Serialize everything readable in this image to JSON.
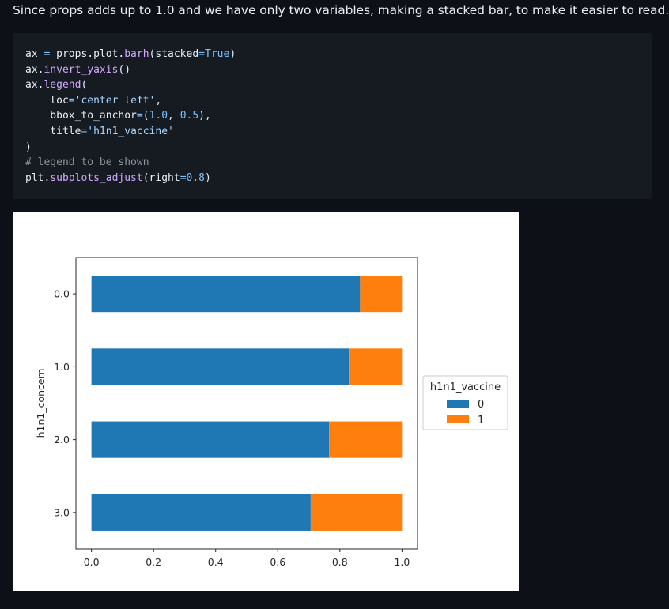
{
  "intro_text": "Since props adds up to 1.0 and we have only two variables, making a stacked bar, to make it easier to read.",
  "code": {
    "lines": [
      [
        {
          "t": "ax ",
          "c": ""
        },
        {
          "t": "=",
          "c": "op"
        },
        {
          "t": " props.plot.",
          "c": ""
        },
        {
          "t": "barh",
          "c": "fn"
        },
        {
          "t": "(stacked",
          "c": ""
        },
        {
          "t": "=",
          "c": "op"
        },
        {
          "t": "True",
          "c": "kw"
        },
        {
          "t": ")",
          "c": ""
        }
      ],
      [
        {
          "t": "ax.",
          "c": ""
        },
        {
          "t": "invert_yaxis",
          "c": "fn"
        },
        {
          "t": "()",
          "c": ""
        }
      ],
      [
        {
          "t": "ax.",
          "c": ""
        },
        {
          "t": "legend",
          "c": "fn"
        },
        {
          "t": "(",
          "c": ""
        }
      ],
      [
        {
          "t": "    loc",
          "c": ""
        },
        {
          "t": "=",
          "c": "op"
        },
        {
          "t": "'center left'",
          "c": "str"
        },
        {
          "t": ",",
          "c": ""
        }
      ],
      [
        {
          "t": "    bbox_to_anchor",
          "c": ""
        },
        {
          "t": "=",
          "c": "op"
        },
        {
          "t": "(",
          "c": ""
        },
        {
          "t": "1.0",
          "c": "num"
        },
        {
          "t": ", ",
          "c": ""
        },
        {
          "t": "0.5",
          "c": "num"
        },
        {
          "t": "),",
          "c": ""
        }
      ],
      [
        {
          "t": "    title",
          "c": ""
        },
        {
          "t": "=",
          "c": "op"
        },
        {
          "t": "'h1n1_vaccine'",
          "c": "str"
        }
      ],
      [
        {
          "t": ")",
          "c": ""
        }
      ],
      [
        {
          "t": "# legend to be shown",
          "c": "com"
        }
      ],
      [
        {
          "t": "plt.",
          "c": ""
        },
        {
          "t": "subplots_adjust",
          "c": "fn"
        },
        {
          "t": "(right",
          "c": ""
        },
        {
          "t": "=",
          "c": "op"
        },
        {
          "t": "0.8",
          "c": "num"
        },
        {
          "t": ")",
          "c": ""
        }
      ]
    ]
  },
  "chart_data": {
    "type": "bar",
    "orientation": "horizontal",
    "stacked": true,
    "categories": [
      "0.0",
      "1.0",
      "2.0",
      "3.0"
    ],
    "series": [
      {
        "name": "0",
        "values": [
          0.865,
          0.829,
          0.765,
          0.706
        ],
        "color": "#1f77b4"
      },
      {
        "name": "1",
        "values": [
          0.135,
          0.171,
          0.235,
          0.294
        ],
        "color": "#ff7f0e"
      }
    ],
    "xticks": [
      "0.0",
      "0.2",
      "0.4",
      "0.6",
      "0.8",
      "1.0"
    ],
    "xtick_values": [
      0.0,
      0.2,
      0.4,
      0.6,
      0.8,
      1.0
    ],
    "xlim": [
      -0.05,
      1.05
    ],
    "ylabel": "h1n1_concern",
    "xlabel": "",
    "y_inverted": true,
    "legend": {
      "title": "h1n1_vaccine",
      "placement": "center-left-outside-right"
    }
  }
}
